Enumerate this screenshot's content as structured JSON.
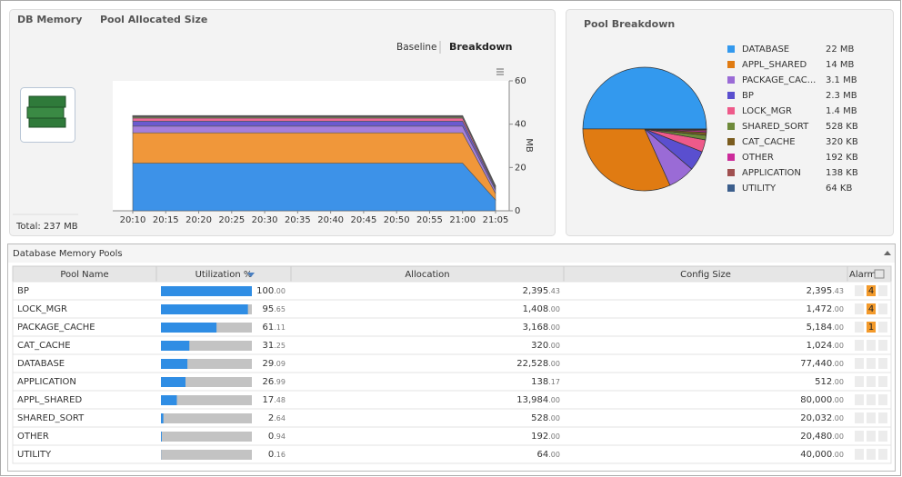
{
  "left_panel": {
    "tabs": [
      "DB Memory",
      "Pool Allocated Size"
    ],
    "views": [
      "Baseline",
      "Breakdown"
    ],
    "total": "Total: 237 MB"
  },
  "right_panel": {
    "title": "Pool Breakdown"
  },
  "chart_data": [
    {
      "type": "area",
      "stacked": true,
      "categories": [
        "20:10",
        "20:15",
        "20:20",
        "20:25",
        "20:30",
        "20:35",
        "20:40",
        "20:45",
        "20:50",
        "20:55",
        "21:00",
        "21:05"
      ],
      "series": [
        {
          "color": "#3d92e8",
          "values": [
            22,
            22,
            22,
            22,
            22,
            22,
            22,
            22,
            22,
            22,
            22,
            5
          ]
        },
        {
          "color": "#f0973a",
          "values": [
            14,
            14,
            14,
            14,
            14,
            14,
            14,
            14,
            14,
            14,
            14,
            3
          ]
        },
        {
          "color": "#a57fdc",
          "values": [
            3.1,
            3.1,
            3.1,
            3.1,
            3.1,
            3.1,
            3.1,
            3.1,
            3.1,
            3.1,
            3.1,
            1.5
          ]
        },
        {
          "color": "#6a5ad0",
          "values": [
            2.3,
            2.3,
            2.3,
            2.3,
            2.3,
            2.3,
            2.3,
            2.3,
            2.3,
            2.3,
            2.3,
            0.8
          ]
        },
        {
          "color": "#ec6a96",
          "values": [
            1.4,
            1.4,
            1.4,
            1.4,
            1.4,
            1.4,
            1.4,
            1.4,
            1.4,
            1.4,
            1.4,
            0.5
          ]
        },
        {
          "color": "#7d8c44",
          "values": [
            0.5,
            0.5,
            0.5,
            0.5,
            0.5,
            0.5,
            0.5,
            0.5,
            0.5,
            0.5,
            0.5,
            0.3
          ]
        },
        {
          "color": "#86652a",
          "values": [
            0.3,
            0.3,
            0.3,
            0.3,
            0.3,
            0.3,
            0.3,
            0.3,
            0.3,
            0.3,
            0.3,
            0.2
          ]
        },
        {
          "color": "#cc3aa0",
          "values": [
            0.2,
            0.2,
            0.2,
            0.2,
            0.2,
            0.2,
            0.2,
            0.2,
            0.2,
            0.2,
            0.2,
            0.1
          ]
        },
        {
          "color": "#a35a5a",
          "values": [
            0.1,
            0.1,
            0.1,
            0.1,
            0.1,
            0.1,
            0.1,
            0.1,
            0.1,
            0.1,
            0.1,
            0.1
          ]
        },
        {
          "color": "#3e5f8e",
          "values": [
            0.1,
            0.1,
            0.1,
            0.1,
            0.1,
            0.1,
            0.1,
            0.1,
            0.1,
            0.1,
            0.1,
            0.05
          ]
        }
      ],
      "ylim": [
        0,
        60
      ],
      "yticks": [
        0,
        20,
        40,
        60
      ],
      "y_label": "MB",
      "y_axis_side": "right"
    },
    {
      "type": "pie",
      "categories": [
        "DATABASE",
        "APPL_SHARED",
        "PACKAGE_CAC...",
        "BP",
        "LOCK_MGR",
        "SHARED_SORT",
        "CAT_CACHE",
        "OTHER",
        "APPLICATION",
        "UTILITY"
      ],
      "values": [
        22,
        14,
        3.1,
        2.3,
        1.4,
        0.528,
        0.32,
        0.192,
        0.138,
        0.064
      ],
      "value_labels": [
        "22 MB",
        "14 MB",
        "3.1 MB",
        "2.3 MB",
        "1.4 MB",
        "528 KB",
        "320 KB",
        "192 KB",
        "138 KB",
        "64 KB"
      ],
      "colors": [
        "#3399ee",
        "#e07b12",
        "#9a6bd6",
        "#5a4fcf",
        "#ee5a8a",
        "#6e8a3a",
        "#7a5c1e",
        "#cc2b9a",
        "#a05050",
        "#3b5e8c"
      ]
    }
  ],
  "table": {
    "title": "Database Memory Pools",
    "columns": [
      "Pool Name",
      "Utilization %",
      "Allocation",
      "Config Size",
      "Alarm"
    ],
    "utilization_range": [
      0,
      100
    ],
    "rows": [
      {
        "name": "BP",
        "utilization": {
          "value": 100,
          "label": "100.00"
        },
        "allocation": "2,395.43",
        "config_size": "2,395.43",
        "alarms": "4"
      },
      {
        "name": "LOCK_MGR",
        "utilization": {
          "value": 95.65,
          "label": "95.65"
        },
        "allocation": "1,408.00",
        "config_size": "1,472.00",
        "alarms": "4"
      },
      {
        "name": "PACKAGE_CACHE",
        "utilization": {
          "value": 61.11,
          "label": "61.11"
        },
        "allocation": "3,168.00",
        "config_size": "5,184.00",
        "alarms": "1"
      },
      {
        "name": "CAT_CACHE",
        "utilization": {
          "value": 31.25,
          "label": "31.25"
        },
        "allocation": "320.00",
        "config_size": "1,024.00",
        "alarms": null
      },
      {
        "name": "DATABASE",
        "utilization": {
          "value": 29.09,
          "label": "29.09"
        },
        "allocation": "22,528.00",
        "config_size": "77,440.00",
        "alarms": null
      },
      {
        "name": "APPLICATION",
        "utilization": {
          "value": 26.99,
          "label": "26.99"
        },
        "allocation": "138.17",
        "config_size": "512.00",
        "alarms": null
      },
      {
        "name": "APPL_SHARED",
        "utilization": {
          "value": 17.48,
          "label": "17.48"
        },
        "allocation": "13,984.00",
        "config_size": "80,000.00",
        "alarms": null
      },
      {
        "name": "SHARED_SORT",
        "utilization": {
          "value": 2.64,
          "label": "2.64"
        },
        "allocation": "528.00",
        "config_size": "20,032.00",
        "alarms": null
      },
      {
        "name": "OTHER",
        "utilization": {
          "value": 0.94,
          "label": "0.94"
        },
        "allocation": "192.00",
        "config_size": "20,480.00",
        "alarms": null
      },
      {
        "name": "UTILITY",
        "utilization": {
          "value": 0.16,
          "label": "0.16"
        },
        "allocation": "64.00",
        "config_size": "40,000.00",
        "alarms": null
      }
    ]
  }
}
